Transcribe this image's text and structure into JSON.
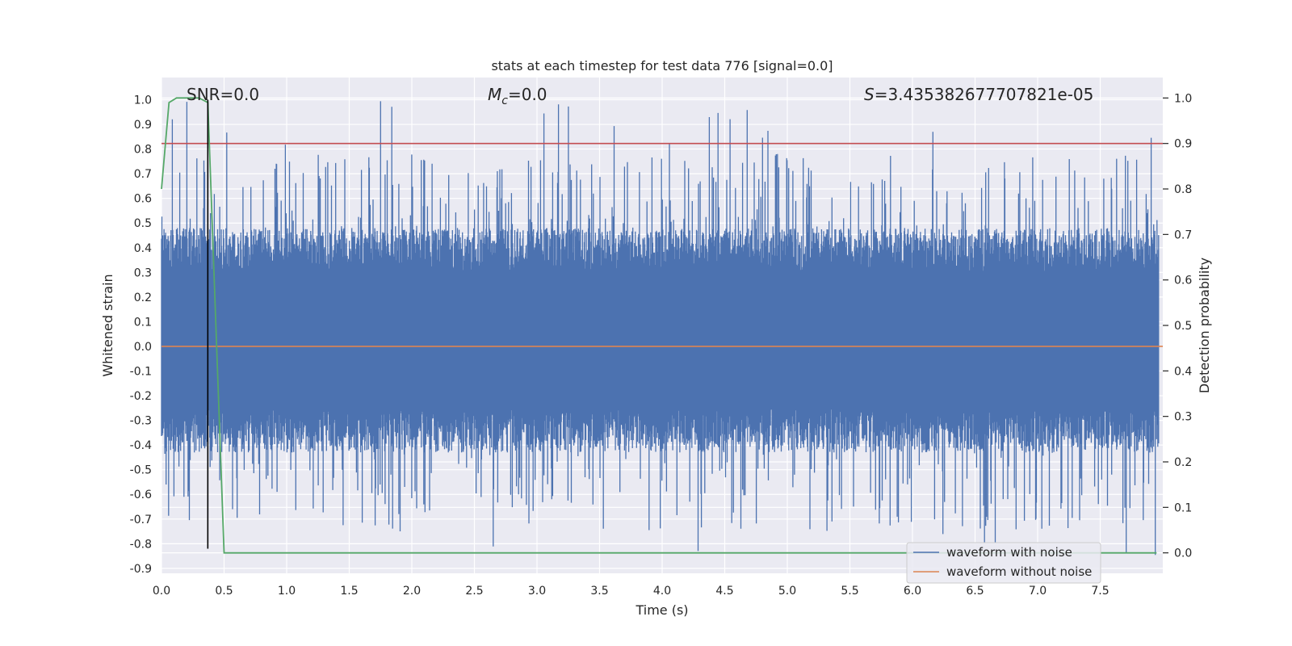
{
  "chart_data": {
    "type": "line",
    "title": "stats at each timestep for test data 776 [signal=0.0]",
    "xlabel": "Time (s)",
    "ylabel": "Whitened strain",
    "y2label": "Detection probability",
    "xlim": [
      0.0,
      8.0
    ],
    "ylim": [
      -0.92,
      1.09
    ],
    "y2lim": [
      -0.045,
      1.045
    ],
    "x_ticks": [
      "0.0",
      "0.5",
      "1.0",
      "1.5",
      "2.0",
      "2.5",
      "3.0",
      "3.5",
      "4.0",
      "4.5",
      "5.0",
      "5.5",
      "6.0",
      "6.5",
      "7.0",
      "7.5"
    ],
    "y_ticks": [
      "1.0",
      "0.9",
      "0.8",
      "0.7",
      "0.6",
      "0.5",
      "0.4",
      "0.3",
      "0.2",
      "0.1",
      "0.0",
      "-0.1",
      "-0.2",
      "-0.3",
      "-0.4",
      "-0.5",
      "-0.6",
      "-0.7",
      "-0.8",
      "-0.9"
    ],
    "y2_ticks": [
      "1.0",
      "0.9",
      "0.8",
      "0.7",
      "0.6",
      "0.5",
      "0.4",
      "0.3",
      "0.2",
      "0.1",
      "0.0"
    ],
    "grid": true,
    "annotations": {
      "snr": "SNR=0.0",
      "mc_symbol": "M",
      "mc_sub": "c",
      "mc_value": "=0.0",
      "s_symbol": "S",
      "s_value": "=3.435382677707821e-05"
    },
    "legend": {
      "placement": "lower-right",
      "entries": [
        "waveform with noise",
        "waveform without noise"
      ]
    },
    "colors": {
      "noise": "#4c72b0",
      "clean": "#dd8452",
      "probability": "#55a868",
      "threshold": "#c44e52",
      "marker": "#000000",
      "panel": "#eaeaf2",
      "grid": "#ffffff"
    },
    "series": [
      {
        "name": "waveform with noise",
        "kind": "dense-noise",
        "approx_band": [
          -0.25,
          0.3
        ],
        "approx_extremes": [
          -0.85,
          1.0
        ]
      },
      {
        "name": "waveform without noise",
        "kind": "constant",
        "value": 0.0
      },
      {
        "axis": "secondary",
        "x": [
          0.0,
          0.06,
          0.12,
          0.18,
          0.25,
          0.3,
          0.37,
          0.5,
          7.95
        ],
        "values": [
          0.8,
          0.99,
          1.0,
          1.0,
          1.0,
          1.0,
          0.99,
          0.0,
          0.0
        ]
      },
      {
        "axis": "secondary",
        "kind": "threshold",
        "value": 0.9
      },
      {
        "kind": "vertical-marker",
        "x": 0.37,
        "y_range": [
          -0.82,
          1.0
        ]
      }
    ]
  }
}
